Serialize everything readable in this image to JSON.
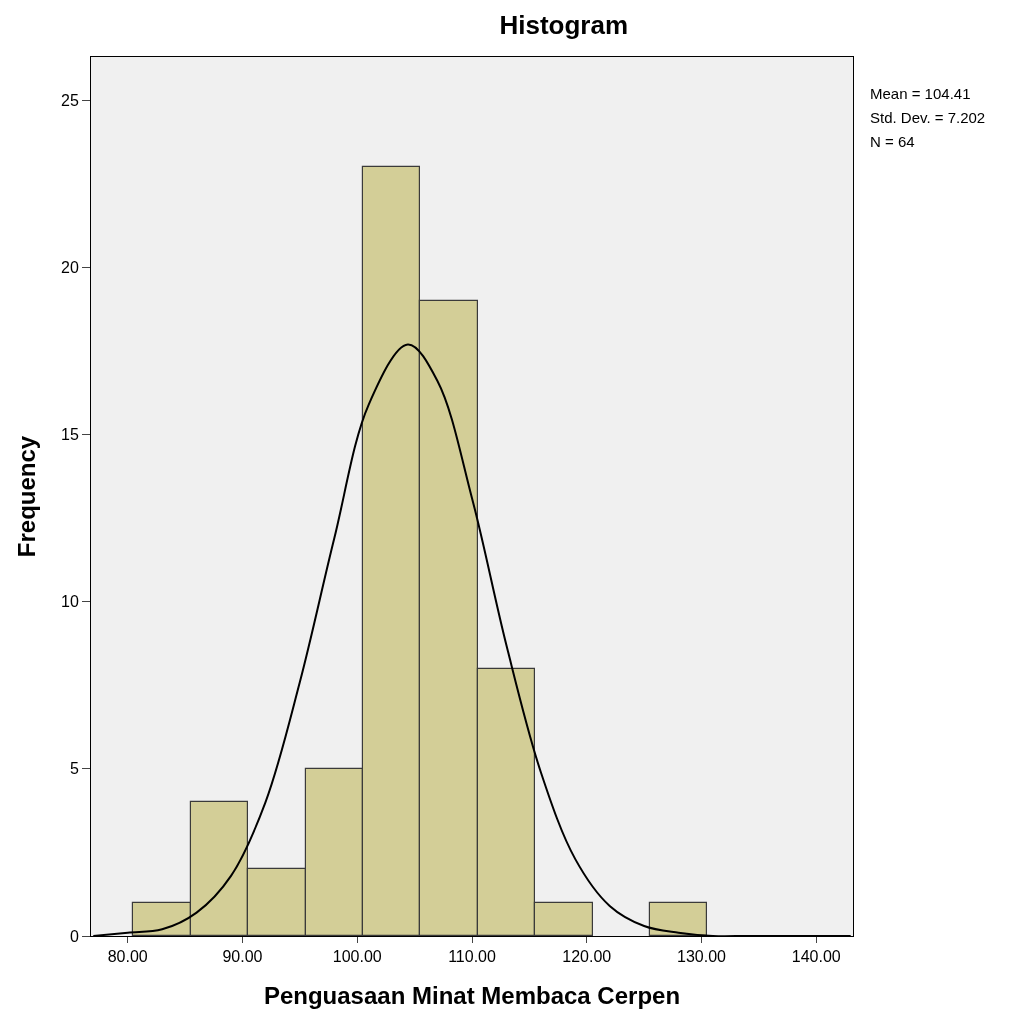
{
  "chart_data": {
    "type": "histogram",
    "title": "Histogram",
    "xlabel": "Penguasaan Minat Membaca Cerpen",
    "ylabel": "Frequency",
    "bins": [
      80.5,
      85.5,
      90.5,
      95.5,
      100.5,
      105.5,
      110.5,
      115.5,
      120.5,
      125.5,
      130.5
    ],
    "series": [
      {
        "color": "#d3ce97",
        "values": [
          1,
          4,
          2,
          5,
          23,
          19,
          8,
          1,
          0,
          1
        ]
      },
      {
        "type": "line",
        "color": "#000000",
        "x": [
          77,
          80,
          83,
          86,
          89,
          92,
          95,
          98,
          101,
          104.41,
          107,
          110,
          113,
          116,
          119,
          122,
          125,
          128,
          131,
          134,
          137,
          140,
          143
        ],
        "values": [
          0,
          0.1,
          0.2,
          0.7,
          1.8,
          4.0,
          7.6,
          11.9,
          15.9,
          17.7,
          16.6,
          13.1,
          8.7,
          4.9,
          2.3,
          0.9,
          0.3,
          0.1,
          0,
          0,
          0,
          0,
          0
        ]
      }
    ],
    "xlim": [
      76.8,
      143.2
    ],
    "ylim": [
      0,
      26.3
    ],
    "xticks": [
      {
        "value": 80,
        "label": "80.00"
      },
      {
        "value": 90,
        "label": "90.00"
      },
      {
        "value": 100,
        "label": "100.00"
      },
      {
        "value": 110,
        "label": "110.00"
      },
      {
        "value": 120,
        "label": "120.00"
      },
      {
        "value": 130,
        "label": "130.00"
      },
      {
        "value": 140,
        "label": "140.00"
      }
    ],
    "yticks": [
      0,
      5,
      10,
      15,
      20,
      25
    ],
    "grid": false,
    "marker": "none",
    "line_style": "solid",
    "annotations": [
      "Mean = 104.41",
      "Std. Dev. = 7.202",
      "N = 64"
    ]
  }
}
